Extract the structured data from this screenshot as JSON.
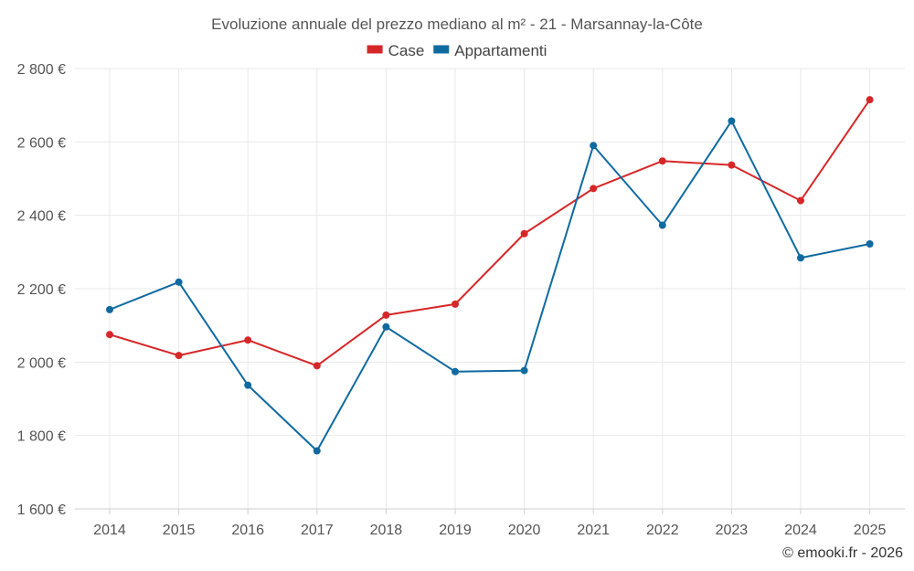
{
  "chart_data": {
    "type": "line",
    "title": "Evoluzione annuale del prezzo mediano al m² - 21 - Marsannay-la-Côte",
    "categories": [
      "2014",
      "2015",
      "2016",
      "2017",
      "2018",
      "2019",
      "2020",
      "2021",
      "2022",
      "2023",
      "2024",
      "2025"
    ],
    "series": [
      {
        "name": "Case",
        "color": "#d62728",
        "values": [
          2075,
          2018,
          2060,
          1990,
          2128,
          2158,
          2350,
          2473,
          2548,
          2537,
          2440,
          2715
        ]
      },
      {
        "name": "Appartamenti",
        "color": "#0f6aa0",
        "values": [
          2143,
          2218,
          1937,
          1758,
          2096,
          1974,
          1977,
          2590,
          2373,
          2657,
          2284,
          2322
        ]
      }
    ],
    "ylim": [
      1600,
      2800
    ],
    "yticks": [
      1600,
      1800,
      2000,
      2200,
      2400,
      2600,
      2800
    ],
    "ytick_labels": [
      "1 600 €",
      "1 800 €",
      "2 000 €",
      "2 200 €",
      "2 400 €",
      "2 600 €",
      "2 800 €"
    ],
    "xlabel": "",
    "ylabel": "",
    "grid": true,
    "legend_position": "top-center"
  },
  "credit": "© emooki.fr - 2026"
}
